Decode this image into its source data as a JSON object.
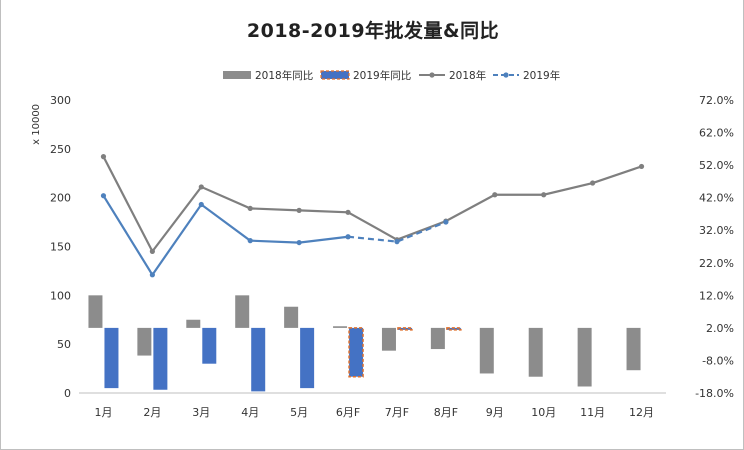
{
  "chart_data": {
    "type": "bar",
    "title": "2018-2019年批发量&同比",
    "categories": [
      "1月",
      "2月",
      "3月",
      "4月",
      "5月",
      "6月F",
      "7月F",
      "8月F",
      "9月",
      "10月",
      "11月",
      "12月"
    ],
    "y_left": {
      "unit_label": "x 10000",
      "ylim": [
        0,
        300
      ],
      "ticks": [
        0,
        50,
        100,
        150,
        200,
        250,
        300
      ]
    },
    "y_right": {
      "ylim": [
        -18,
        72
      ],
      "ticks": [
        -18,
        -8,
        2,
        12,
        22,
        32,
        42,
        52,
        62,
        72
      ],
      "tick_labels": [
        "-18.0%",
        "-8.0%",
        "2.0%",
        "12.0%",
        "22.0%",
        "32.0%",
        "42.0%",
        "52.0%",
        "62.0%",
        "72.0%"
      ]
    },
    "legend": {
      "placement": "top-center",
      "entries": [
        "2018年同比",
        "2019年同比",
        "2018年",
        "2019年"
      ]
    },
    "series": [
      {
        "name": "2018年同比",
        "kind": "bar",
        "axis": "right",
        "color": "#8c8c8c",
        "values": [
          12,
          -6.5,
          4.5,
          12,
          8.5,
          2.5,
          -5,
          -4.5,
          -12,
          -13,
          -16,
          -11
        ]
      },
      {
        "name": "2019年同比",
        "kind": "bar",
        "axis": "right",
        "color": "#4472c4",
        "values": [
          -16.5,
          -17,
          -9,
          -17.5,
          -16.5,
          -13,
          1.5,
          1.5,
          null,
          null,
          null,
          null
        ],
        "forecast_from_index": 5,
        "forecast_style": "dashed-orange-outline"
      },
      {
        "name": "2018年",
        "kind": "line",
        "axis": "left",
        "color": "#7f7f7f",
        "values": [
          242,
          145,
          211,
          189,
          187,
          185,
          157,
          176,
          203,
          203,
          215,
          232
        ]
      },
      {
        "name": "2019年",
        "kind": "line",
        "axis": "left",
        "color": "#4e81bd",
        "values": [
          202,
          121,
          193,
          156,
          154,
          160,
          155,
          175,
          null,
          null,
          null,
          null
        ],
        "forecast_from_index": 5,
        "forecast_style": "dashed"
      }
    ],
    "grid": false
  }
}
